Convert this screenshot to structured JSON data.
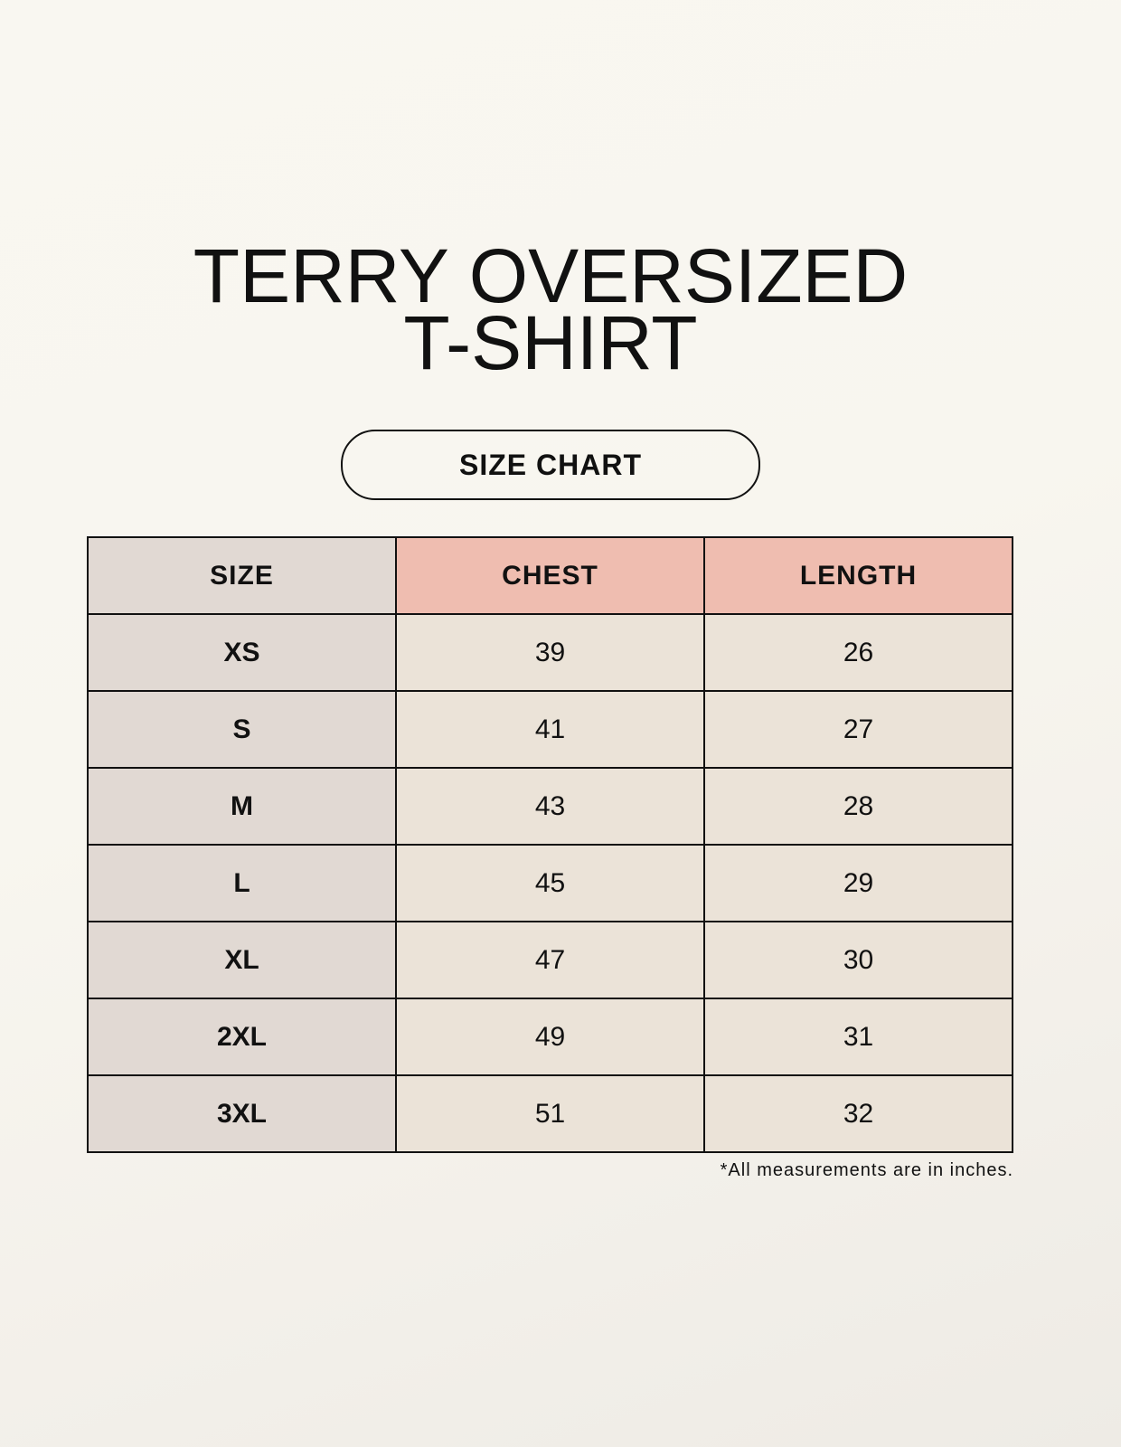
{
  "title_line1": "TERRY OVERSIZED",
  "title_line2": "T-SHIRT",
  "badge": "SIZE CHART",
  "table": {
    "headers": [
      "SIZE",
      "CHEST",
      "LENGTH"
    ],
    "rows": [
      [
        "XS",
        "39",
        "26"
      ],
      [
        "S",
        "41",
        "27"
      ],
      [
        "M",
        "43",
        "28"
      ],
      [
        "L",
        "45",
        "29"
      ],
      [
        "XL",
        "47",
        "30"
      ],
      [
        "2XL",
        "49",
        "31"
      ],
      [
        "3XL",
        "51",
        "32"
      ]
    ]
  },
  "footnote": "*All measurements are in inches.",
  "colors": {
    "size_column": "#e1d9d3",
    "header_accent": "#efbdb0",
    "cell": "#ebe3d8"
  }
}
